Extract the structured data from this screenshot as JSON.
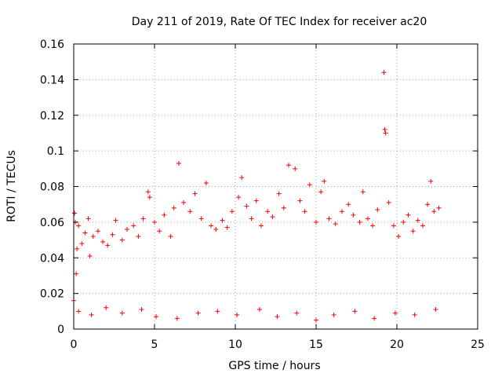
{
  "chart_data": {
    "type": "scatter",
    "title": "Day 211 of 2019, Rate Of TEC Index for receiver ac20",
    "xlabel": "GPS time / hours",
    "ylabel": "ROTI / TECUs",
    "xlim": [
      0,
      25
    ],
    "ylim": [
      0,
      0.16
    ],
    "xticks": [
      0,
      5,
      10,
      15,
      20,
      25
    ],
    "xtick_labels": [
      "0",
      "5",
      "10",
      "15",
      "20",
      "25"
    ],
    "yticks": [
      0,
      0.02,
      0.04,
      0.06,
      0.08,
      0.1,
      0.12,
      0.14,
      0.16
    ],
    "ytick_labels": [
      "0",
      "0.02",
      "0.04",
      "0.06",
      "0.08",
      "0.1",
      "0.12",
      "0.14",
      "0.16"
    ],
    "grid": true,
    "marker": "plus",
    "color": "#ff0000",
    "series": [
      {
        "values": [
          [
            0.0,
            0.016
          ],
          [
            0.05,
            0.065
          ],
          [
            0.1,
            0.06
          ],
          [
            0.15,
            0.031
          ],
          [
            0.2,
            0.045
          ],
          [
            0.3,
            0.058
          ],
          [
            0.5,
            0.048
          ],
          [
            0.7,
            0.054
          ],
          [
            0.9,
            0.062
          ],
          [
            1.0,
            0.041
          ],
          [
            1.2,
            0.052
          ],
          [
            1.5,
            0.055
          ],
          [
            1.8,
            0.049
          ],
          [
            2.1,
            0.047
          ],
          [
            2.4,
            0.053
          ],
          [
            2.6,
            0.061
          ],
          [
            3.0,
            0.05
          ],
          [
            3.3,
            0.056
          ],
          [
            3.7,
            0.058
          ],
          [
            4.0,
            0.052
          ],
          [
            4.3,
            0.062
          ],
          [
            4.6,
            0.077
          ],
          [
            4.7,
            0.074
          ],
          [
            5.0,
            0.06
          ],
          [
            5.3,
            0.055
          ],
          [
            5.6,
            0.064
          ],
          [
            6.0,
            0.052
          ],
          [
            6.2,
            0.068
          ],
          [
            6.5,
            0.093
          ],
          [
            6.8,
            0.071
          ],
          [
            7.2,
            0.066
          ],
          [
            7.5,
            0.076
          ],
          [
            7.9,
            0.062
          ],
          [
            8.2,
            0.082
          ],
          [
            8.5,
            0.058
          ],
          [
            8.8,
            0.056
          ],
          [
            9.2,
            0.061
          ],
          [
            9.5,
            0.057
          ],
          [
            9.8,
            0.066
          ],
          [
            10.2,
            0.074
          ],
          [
            10.4,
            0.085
          ],
          [
            10.7,
            0.069
          ],
          [
            11.0,
            0.062
          ],
          [
            11.3,
            0.072
          ],
          [
            11.6,
            0.058
          ],
          [
            12.0,
            0.066
          ],
          [
            12.3,
            0.063
          ],
          [
            12.7,
            0.076
          ],
          [
            13.0,
            0.068
          ],
          [
            13.3,
            0.092
          ],
          [
            13.7,
            0.09
          ],
          [
            14.0,
            0.072
          ],
          [
            14.3,
            0.066
          ],
          [
            14.6,
            0.081
          ],
          [
            15.0,
            0.06
          ],
          [
            15.3,
            0.077
          ],
          [
            15.5,
            0.083
          ],
          [
            15.8,
            0.062
          ],
          [
            16.2,
            0.059
          ],
          [
            16.6,
            0.066
          ],
          [
            17.0,
            0.07
          ],
          [
            17.3,
            0.064
          ],
          [
            17.7,
            0.06
          ],
          [
            17.9,
            0.077
          ],
          [
            18.2,
            0.062
          ],
          [
            18.5,
            0.058
          ],
          [
            18.8,
            0.067
          ],
          [
            19.2,
            0.144
          ],
          [
            19.25,
            0.112
          ],
          [
            19.3,
            0.11
          ],
          [
            19.5,
            0.071
          ],
          [
            19.8,
            0.058
          ],
          [
            20.1,
            0.052
          ],
          [
            20.4,
            0.06
          ],
          [
            20.7,
            0.064
          ],
          [
            21.0,
            0.055
          ],
          [
            21.3,
            0.061
          ],
          [
            21.6,
            0.058
          ],
          [
            21.9,
            0.07
          ],
          [
            22.1,
            0.083
          ],
          [
            22.3,
            0.066
          ],
          [
            22.6,
            0.068
          ],
          [
            0.3,
            0.01
          ],
          [
            1.1,
            0.008
          ],
          [
            2.0,
            0.012
          ],
          [
            3.0,
            0.009
          ],
          [
            4.2,
            0.011
          ],
          [
            5.1,
            0.007
          ],
          [
            6.4,
            0.006
          ],
          [
            7.7,
            0.009
          ],
          [
            8.9,
            0.01
          ],
          [
            10.1,
            0.008
          ],
          [
            11.5,
            0.011
          ],
          [
            12.6,
            0.007
          ],
          [
            13.8,
            0.009
          ],
          [
            15.0,
            0.005
          ],
          [
            16.1,
            0.008
          ],
          [
            17.4,
            0.01
          ],
          [
            18.6,
            0.006
          ],
          [
            19.9,
            0.009
          ],
          [
            21.1,
            0.008
          ],
          [
            22.4,
            0.011
          ]
        ]
      }
    ]
  }
}
